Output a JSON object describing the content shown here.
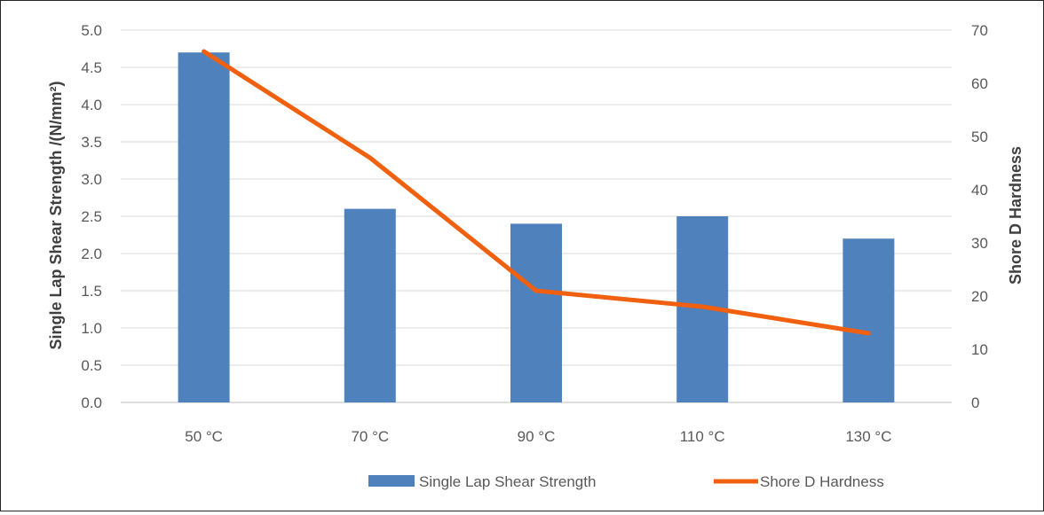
{
  "chart_data": {
    "type": "bar",
    "categories": [
      "50 °C",
      "70 °C",
      "90 °C",
      "110 °C",
      "130 °C"
    ],
    "series": [
      {
        "name": "Single Lap Shear Strength",
        "type": "bar",
        "axis": "left",
        "values": [
          4.7,
          2.6,
          2.4,
          2.5,
          2.2
        ],
        "color": "#4F81BD"
      },
      {
        "name": "Shore D Hardness",
        "type": "line",
        "axis": "right",
        "values": [
          66,
          46,
          21,
          18,
          13
        ],
        "color": "#F0600F"
      }
    ],
    "ylabel": "Single Lap Shear Strength /(N/mm²)",
    "y2label": "Shore D Hardness",
    "ylim": [
      0,
      5
    ],
    "y2lim": [
      0,
      70
    ],
    "yticks": [
      "0.0",
      "0.5",
      "1.0",
      "1.5",
      "2.0",
      "2.5",
      "3.0",
      "3.5",
      "4.0",
      "4.5",
      "5.0"
    ],
    "y2ticks": [
      "0",
      "10",
      "20",
      "30",
      "40",
      "50",
      "60",
      "70"
    ],
    "grid": true,
    "legend_position": "bottom"
  }
}
